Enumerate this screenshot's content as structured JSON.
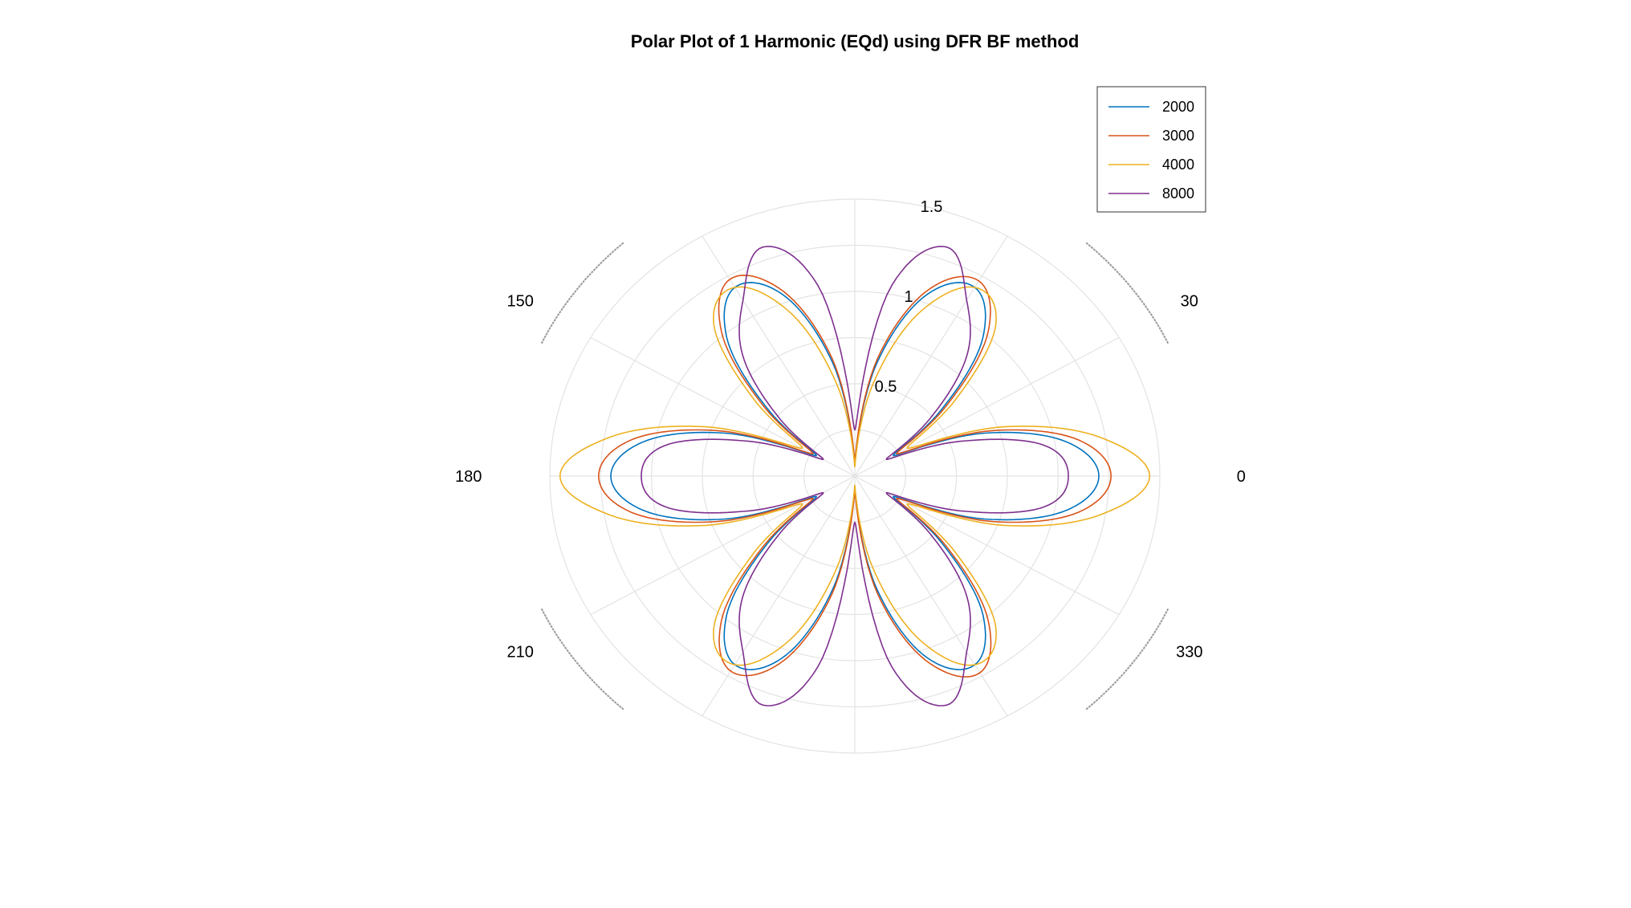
{
  "chart_data": {
    "type": "line",
    "projection": "polar",
    "title": "Polar Plot of 1 Harmonic (EQd) using DFR BF method",
    "rlim": [
      0,
      1.5
    ],
    "r_ticks": [
      "0.5",
      "1",
      "1.5"
    ],
    "r_tick_values": [
      0.5,
      1,
      1.5
    ],
    "theta_ticks": [
      "0",
      "30",
      "150",
      "180",
      "210",
      "330"
    ],
    "theta_tick_values": [
      0,
      30,
      150,
      180,
      210,
      330
    ],
    "grid": true,
    "legend_position": "top-right",
    "theta_deg": [
      0,
      10,
      20,
      30,
      40,
      50,
      60,
      70,
      80,
      90,
      100,
      110,
      120,
      130,
      140,
      150,
      160,
      170,
      180,
      190,
      200,
      210,
      220,
      230,
      240,
      250,
      260,
      270,
      280,
      290,
      300,
      310,
      320,
      330,
      340,
      350
    ],
    "series": [
      {
        "name": "2000",
        "color": "#0072BD",
        "values": [
          1.2,
          1.06,
          0.68,
          0.22,
          0.55,
          0.98,
          1.18,
          1.05,
          0.62,
          0.07,
          0.62,
          1.05,
          1.18,
          0.98,
          0.55,
          0.22,
          0.68,
          1.06,
          1.2,
          1.06,
          0.68,
          0.22,
          0.55,
          0.98,
          1.18,
          1.05,
          0.62,
          0.07,
          0.62,
          1.05,
          1.18,
          0.98,
          0.55,
          0.22,
          0.68,
          1.06
        ]
      },
      {
        "name": "3000",
        "color": "#D95319",
        "values": [
          1.26,
          1.12,
          0.72,
          0.24,
          0.58,
          1.02,
          1.22,
          1.08,
          0.65,
          0.08,
          0.65,
          1.08,
          1.23,
          1.02,
          0.58,
          0.24,
          0.72,
          1.12,
          1.26,
          1.12,
          0.72,
          0.24,
          0.58,
          1.02,
          1.22,
          1.08,
          0.65,
          0.08,
          0.65,
          1.08,
          1.23,
          1.02,
          0.58,
          0.24,
          0.72,
          1.12
        ]
      },
      {
        "name": "4000",
        "color": "#EDB120",
        "values": [
          1.45,
          1.22,
          0.78,
          0.3,
          0.65,
          1.08,
          1.18,
          0.95,
          0.5,
          0.05,
          0.5,
          0.95,
          1.18,
          1.08,
          0.65,
          0.3,
          0.78,
          1.22,
          1.45,
          1.22,
          0.78,
          0.3,
          0.65,
          1.08,
          1.18,
          0.95,
          0.5,
          0.05,
          0.5,
          0.95,
          1.18,
          1.08,
          0.65,
          0.3,
          0.78,
          1.22
        ]
      },
      {
        "name": "8000",
        "color": "#7E2F8E",
        "values": [
          1.05,
          0.95,
          0.55,
          0.18,
          0.48,
          0.86,
          1.1,
          1.32,
          1.05,
          0.25,
          1.05,
          1.32,
          1.1,
          0.86,
          0.48,
          0.18,
          0.55,
          0.95,
          1.05,
          0.95,
          0.55,
          0.18,
          0.48,
          0.86,
          1.1,
          1.32,
          1.05,
          0.25,
          1.05,
          1.32,
          1.1,
          0.86,
          0.48,
          0.18,
          0.55,
          0.95
        ]
      }
    ]
  }
}
